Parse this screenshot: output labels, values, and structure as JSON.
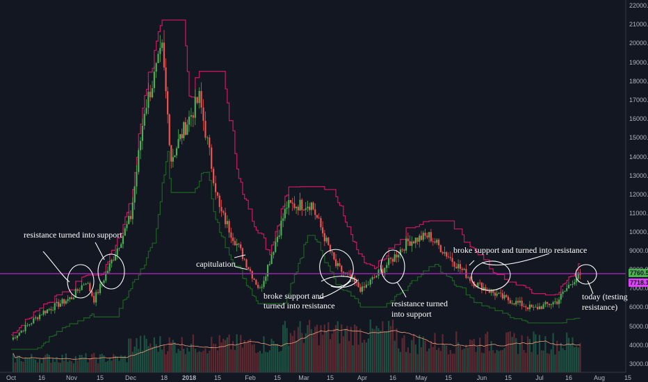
{
  "chart_data": {
    "type": "candlestick",
    "title": "",
    "xlabel": "",
    "ylabel": "",
    "ylim": [
      2800,
      22200
    ],
    "grid": false,
    "x_ticks": [
      "Oct",
      "16",
      "Nov",
      "15",
      "Dec",
      "18",
      "2018",
      "15",
      "Feb",
      "15",
      "Mar",
      "15",
      "Apr",
      "16",
      "May",
      "15",
      "Jun",
      "15",
      "Jul",
      "16",
      "Aug",
      "15"
    ],
    "y_ticks": [
      "3000.0",
      "4000.0",
      "5000.0",
      "6000.0",
      "7000.0",
      "8000.0",
      "9000.0",
      "10000.0",
      "11000.0",
      "12000.0",
      "13000.0",
      "14000.0",
      "15000.0",
      "16000.0",
      "17000.0",
      "18000.0",
      "19000.0",
      "20000.0",
      "21000.0",
      "22000.0"
    ],
    "price_labels": [
      {
        "text": "7760.5",
        "value": 7760.5,
        "color": "#4caf50"
      },
      {
        "text": "7718.1",
        "value": 7718.1,
        "color": "#e040fb"
      }
    ],
    "horizontal_line": {
      "value": 7760,
      "color": "#9c27b0"
    },
    "approx_close_path": [
      {
        "x": "Oct 1",
        "y": 4300
      },
      {
        "x": "Oct 16",
        "y": 5700
      },
      {
        "x": "Nov 1",
        "y": 6500
      },
      {
        "x": "Nov 8",
        "y": 7400
      },
      {
        "x": "Nov 12",
        "y": 6400
      },
      {
        "x": "Nov 20",
        "y": 8200
      },
      {
        "x": "Dec 1",
        "y": 10800
      },
      {
        "x": "Dec 8",
        "y": 16500
      },
      {
        "x": "Dec 17",
        "y": 19600
      },
      {
        "x": "Dec 22",
        "y": 13900
      },
      {
        "x": "Jan 6",
        "y": 17100
      },
      {
        "x": "Jan 16",
        "y": 11200
      },
      {
        "x": "Feb 6",
        "y": 6900
      },
      {
        "x": "Feb 20",
        "y": 11400
      },
      {
        "x": "Mar 5",
        "y": 11500
      },
      {
        "x": "Mar 18",
        "y": 8200
      },
      {
        "x": "Apr 1",
        "y": 6900
      },
      {
        "x": "Apr 24",
        "y": 9500
      },
      {
        "x": "May 5",
        "y": 9800
      },
      {
        "x": "May 28",
        "y": 7300
      },
      {
        "x": "Jun 12",
        "y": 6500
      },
      {
        "x": "Jun 28",
        "y": 5900
      },
      {
        "x": "Jul 10",
        "y": 6300
      },
      {
        "x": "Jul 18",
        "y": 7400
      },
      {
        "x": "Jul 22",
        "y": 7720
      }
    ],
    "annotations": [
      {
        "text": "resistance turned into support"
      },
      {
        "text": "capitulation"
      },
      {
        "text": "broke support and"
      },
      {
        "text": "turned into resistance"
      },
      {
        "text": "resistance turned"
      },
      {
        "text": "into support"
      },
      {
        "text": "broke support and turned into resistance"
      },
      {
        "text": "today (testing"
      },
      {
        "text": "resistance)"
      }
    ],
    "colors": {
      "background": "#131722",
      "up": "#26a69a",
      "up_bright": "#4caf50",
      "down": "#ef5350",
      "stop_line": "#c2185b",
      "support_line": "#1b5e20",
      "volume_ma": "#f4a07a",
      "annotation": "#ffffff"
    }
  }
}
